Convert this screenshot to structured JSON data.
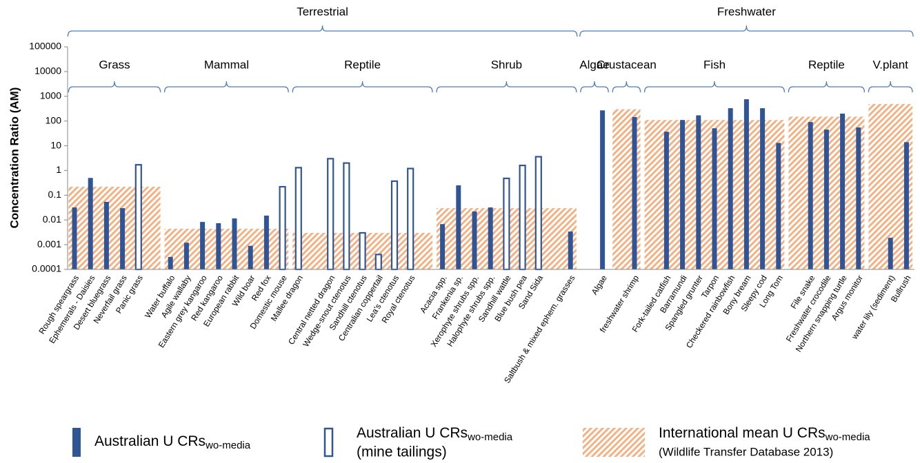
{
  "chart_data": {
    "type": "bar",
    "log_scale": true,
    "ylabel": "Concentration Ratio (AM)",
    "ylim": [
      0.0001,
      100000
    ],
    "yticks": [
      0.0001,
      0.001,
      0.01,
      0.1,
      1,
      10,
      100,
      1000,
      10000,
      100000
    ],
    "legend": [
      {
        "name": "Australian U CRs",
        "sub": "wo-media",
        "style": "filled",
        "color": "#2f5597"
      },
      {
        "name": "Australian U CRs",
        "sub": "wo-media",
        "note": "(mine tailings)",
        "style": "outline",
        "color": "#2f5597"
      },
      {
        "name": "International mean U CRs",
        "sub": "wo-media",
        "note": "(Wildlife Transfer Database 2013)",
        "style": "hatch",
        "color": "#f4b183"
      }
    ],
    "realms": [
      {
        "name": "Terrestrial",
        "groups": [
          {
            "name": "Grass",
            "categories": [
              "Rough speargrass",
              "Ephemerals - Daisies",
              "Desert bluegrass",
              "Neverfail grass",
              "Panic grass",
              null
            ],
            "values": [
              0.032,
              0.5,
              0.054,
              0.03,
              null,
              null
            ],
            "tailings_values": [
              null,
              null,
              null,
              null,
              1.7,
              null
            ],
            "intl": 0.22
          },
          {
            "name": "Mammal",
            "categories": [
              "Water buffalo",
              "Agile wallaby",
              "Eastern grey kangaroo",
              "Red kangaroo",
              "European rabbit",
              "Wild boar",
              "Red fox",
              "Domestic mouse"
            ],
            "values": [
              0.00032,
              0.0012,
              0.0083,
              0.0074,
              0.0115,
              0.0009,
              0.015,
              null
            ],
            "tailings_values": [
              null,
              null,
              null,
              null,
              null,
              null,
              null,
              0.22
            ],
            "intl": 0.0044
          },
          {
            "name": "Reptile",
            "categories": [
              "Mallee dragon",
              null,
              "Central netted dragon",
              "Wedge-snout ctenotus",
              "Sandhill ctenotus",
              "Centralian coppertail",
              "Lea's ctenotus",
              "Royal ctenotus",
              null
            ],
            "values": [
              null,
              null,
              null,
              null,
              null,
              null,
              null,
              null,
              null
            ],
            "tailings_values": [
              1.3,
              null,
              3,
              2,
              0.003,
              0.0004,
              0.37,
              1.2,
              null
            ],
            "intl": 0.003
          },
          {
            "name": "Shrub",
            "categories": [
              "Acacia spp.",
              "Frankenia sp.",
              "Xerophyte shrubs spp.",
              "Halophyte shrubs spp.",
              "Sandhill wattle",
              "Blue bush pea",
              "Sand Sida",
              null,
              "Saltbush & mixed ephem. grasses"
            ],
            "values": [
              0.0068,
              0.25,
              0.022,
              0.032,
              null,
              null,
              null,
              null,
              0.0034
            ],
            "tailings_values": [
              null,
              null,
              null,
              null,
              0.48,
              1.6,
              3.6,
              null,
              null
            ],
            "intl": 0.03
          }
        ]
      },
      {
        "name": "Freshwater",
        "groups": [
          {
            "name": "Algae",
            "categories": [
              null,
              "Algae"
            ],
            "values": [
              null,
              270
            ],
            "intl": null
          },
          {
            "name": "Crustacean",
            "categories": [
              null,
              "freshwater shrimp"
            ],
            "values": [
              null,
              145
            ],
            "intl": 300
          },
          {
            "name": "Fish",
            "categories": [
              null,
              "Fork-tailed catfish",
              "Barramundi",
              "Spangled grunter",
              "Tarpon",
              "Checkered rainbowfish",
              "Bony bream",
              "Sleepy cod",
              "Long Tom"
            ],
            "values": [
              null,
              37,
              110,
              170,
              51,
              330,
              760,
              330,
              13
            ],
            "intl": 110
          },
          {
            "name": "Reptile",
            "categories": [
              null,
              "File snake",
              "Freshwater crocodile",
              "Northern snapping turtle",
              "Argus monitor"
            ],
            "values": [
              null,
              91,
              45,
              200,
              55
            ],
            "intl": 150
          },
          {
            "name": "V.plant",
            "categories": [
              null,
              "water lily (sediment)",
              "Bullrush"
            ],
            "values": [
              null,
              0.0019,
              14
            ],
            "intl": 490
          }
        ]
      }
    ]
  }
}
